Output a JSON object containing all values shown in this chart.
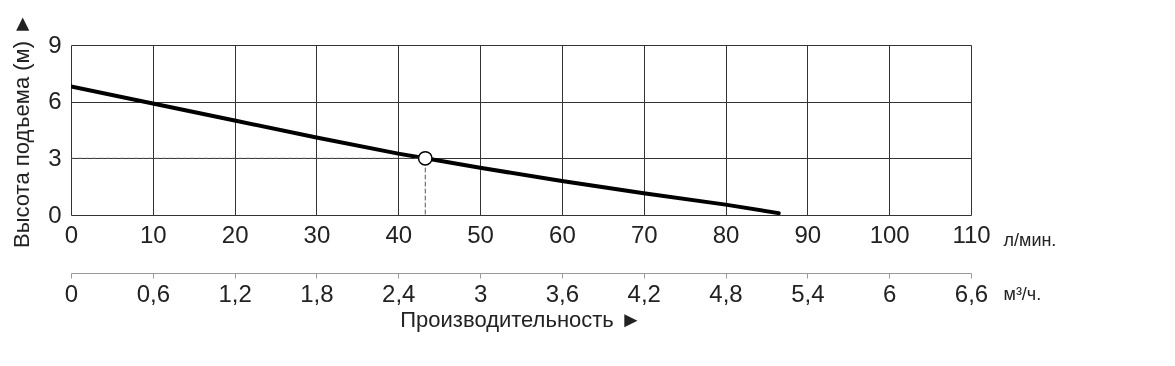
{
  "chart_data": {
    "type": "line",
    "ylabel": "Высота подъема (м) ►",
    "xlabel": "л/мин.",
    "x2label": "м³/ч.",
    "annotations": [
      "Производительность ►"
    ],
    "xlim": [
      0,
      110
    ],
    "xticks": [
      0,
      10,
      20,
      30,
      40,
      50,
      60,
      70,
      80,
      90,
      100,
      110
    ],
    "x2lim": [
      0,
      6.6
    ],
    "x2ticks": [
      0,
      {
        "value": 0.6,
        "label": "0,6"
      },
      {
        "value": 1.2,
        "label": "1,2"
      },
      {
        "value": 1.8,
        "label": "1,8"
      },
      {
        "value": 2.4,
        "label": "2,4"
      },
      3,
      {
        "value": 3.6,
        "label": "3,6"
      },
      {
        "value": 4.2,
        "label": "4,2"
      },
      {
        "value": 4.8,
        "label": "4,8"
      },
      {
        "value": 5.4,
        "label": "5,4"
      },
      6,
      {
        "value": 6.6,
        "label": "6,6"
      }
    ],
    "ylim": [
      0,
      9
    ],
    "yticks": [
      0,
      3,
      6,
      9
    ],
    "grid": true,
    "series": [
      {
        "color": "#000000",
        "line_style": "solid",
        "marker": "none",
        "x": [
          0,
          10,
          20,
          30,
          40,
          43.3,
          50,
          60,
          70,
          80,
          86.5
        ],
        "values": [
          6.8,
          5.9,
          5.0,
          4.1,
          3.25,
          3.0,
          2.5,
          1.8,
          1.15,
          0.55,
          0.1
        ]
      },
      {
        "color": "#555555",
        "line_style": "dashed",
        "marker": "none",
        "x": [
          0,
          43.3,
          43.3
        ],
        "values": [
          3,
          3,
          0
        ]
      },
      {
        "type": "scatter",
        "color": "#000000",
        "marker": "circle",
        "x": [
          43.3
        ],
        "values": [
          3
        ]
      }
    ]
  }
}
